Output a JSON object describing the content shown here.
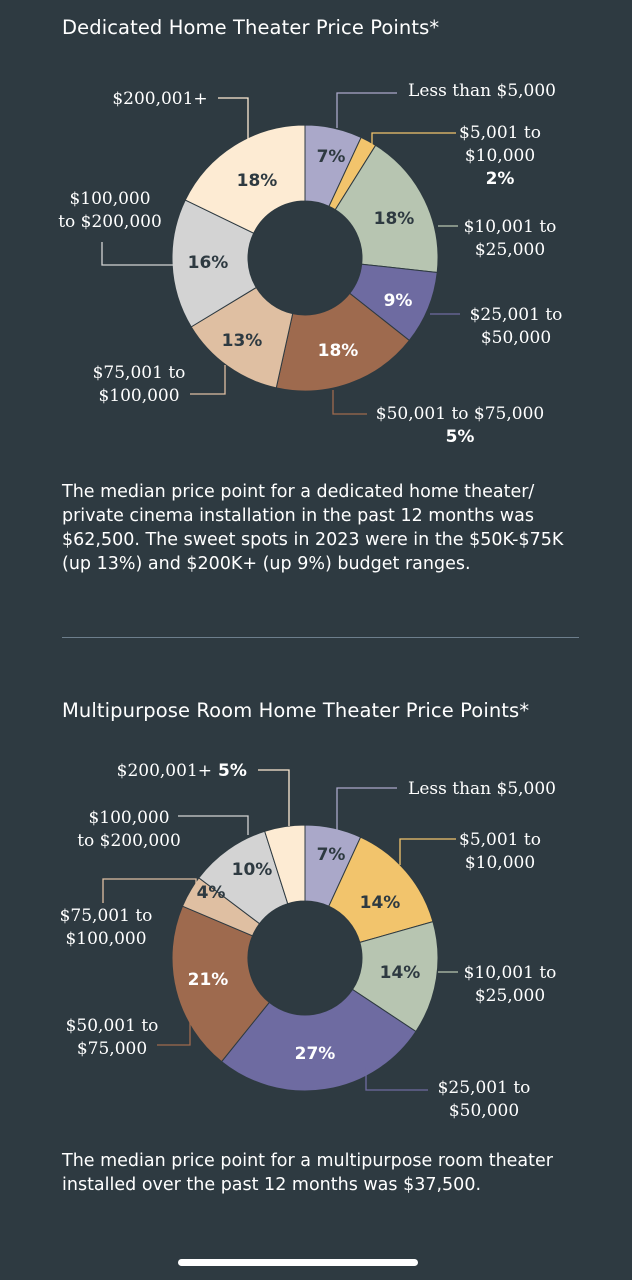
{
  "charts": [
    {
      "title": "Dedicated Home Theater Price Points*",
      "summary": "The median price point for a dedicated home theater/ private cinema installation in the past 12 months was $62,500. The sweet spots in 2023 were in the $50K-$75K (up 13%) and $200K+ (up 9%) budget ranges.",
      "colors": {
        "lt5k": "#aaa8c9",
        "5k10k": "#f2c46c",
        "10k25k": "#b7c5b1",
        "25k50k": "#6e6ba1",
        "50k75k": "#9e6a4e",
        "75k100k": "#dfbfa2",
        "100k200k": "#d3d3d3",
        "200kplus": "#fdebd3"
      },
      "callouts": [
        {
          "lines": [
            "Less than $5,000"
          ]
        },
        {
          "lines": [
            "$5,001 to",
            "$10,000"
          ],
          "bold": "2%"
        },
        {
          "lines": [
            "$10,001 to",
            "$25,000"
          ]
        },
        {
          "lines": [
            "$25,001 to",
            "$50,000"
          ]
        },
        {
          "lines": [
            "$50,001 to $75,000"
          ],
          "bold": "5%"
        },
        {
          "lines": [
            "$75,001 to",
            "$100,000"
          ]
        },
        {
          "lines": [
            "$100,000",
            "to $200,000"
          ]
        },
        {
          "lines": [
            "$200,001+"
          ]
        }
      ]
    },
    {
      "title": "Multipurpose Room Home Theater Price Points*",
      "summary": "The median price point for a multipurpose room theater installed over the past 12 months was $37,500.",
      "colors": {
        "lt5k": "#aaa8c9",
        "5k10k": "#f2c46c",
        "10k25k": "#b7c5b1",
        "25k50k": "#6e6ba1",
        "50k75k": "#9e6a4e",
        "75k100k": "#dfbfa2",
        "100k200k": "#d3d3d3",
        "200kplus": "#fdebd3"
      },
      "callouts": [
        {
          "lines": [
            "Less than $5,000"
          ]
        },
        {
          "lines": [
            "$5,001 to",
            "$10,000"
          ]
        },
        {
          "lines": [
            "$10,001 to",
            "$25,000"
          ]
        },
        {
          "lines": [
            "$25,001 to",
            "$50,000"
          ]
        },
        {
          "lines": [
            "$50,001 to",
            "$75,000"
          ]
        },
        {
          "lines": [
            "$75,001 to",
            "$100,000"
          ]
        },
        {
          "lines": [
            "$100,000",
            "to $200,000"
          ]
        },
        {
          "lines": [
            "$200,001+"
          ],
          "bold_inline": "5%"
        }
      ]
    }
  ],
  "chart_data": [
    {
      "type": "pie",
      "title": "Dedicated Home Theater Price Points*",
      "categories": [
        "Less than $5,000",
        "$5,001 to $10,000",
        "$10,001 to $25,000",
        "$25,001 to $50,000",
        "$50,001 to $75,000",
        "$75,001 to $100,000",
        "$100,000 to $200,000",
        "$200,001+"
      ],
      "values": [
        7,
        2,
        18,
        9,
        18,
        13,
        16,
        18
      ],
      "data_labels": [
        "7%",
        "2%",
        "18%",
        "9%",
        "18%",
        "13%",
        "16%",
        "18%"
      ],
      "donut": true,
      "note": "The $50,001 to $75,000 callout also prints 5%."
    },
    {
      "type": "pie",
      "title": "Multipurpose Room Home Theater Price Points*",
      "categories": [
        "Less than $5,000",
        "$5,001 to $10,000",
        "$10,001 to $25,000",
        "$25,001 to $50,000",
        "$50,001 to $75,000",
        "$75,001 to $100,000",
        "$100,000 to $200,000",
        "$200,001+"
      ],
      "values": [
        7,
        14,
        14,
        27,
        21,
        4,
        10,
        5
      ],
      "data_labels": [
        "7%",
        "14%",
        "14%",
        "27%",
        "21%",
        "4%",
        "10%",
        "5%"
      ],
      "donut": true
    }
  ]
}
